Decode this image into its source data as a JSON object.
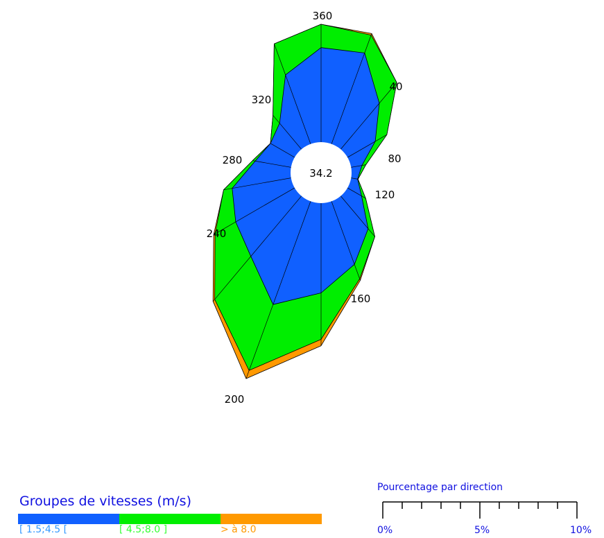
{
  "chart_data": {
    "type": "polar-area",
    "center_value": "34.2",
    "direction_labels": [
      "360",
      "40",
      "80",
      "120",
      "160",
      "200",
      "240",
      "280",
      "320"
    ],
    "directions": [
      0,
      20,
      40,
      60,
      80,
      100,
      120,
      140,
      160,
      180,
      200,
      220,
      240,
      260,
      280,
      300,
      320,
      340
    ],
    "series": [
      {
        "name": "[ 1.5;4.5 [",
        "color": "#1060ff",
        "values": [
          3.74,
          3.81,
          2.71,
          1.87,
          1.24,
          1.11,
          1.4,
          2.19,
          2.92,
          3.6,
          4.2,
          3.27,
          2.95,
          2.7,
          2.0,
          1.75,
          1.93,
          3.11
        ]
      },
      {
        "name": "[ 4.5;8.0 ]",
        "color": "#00ee00",
        "values": [
          4.44,
          4.38,
          3.52,
          2.27,
          1.36,
          1.12,
          1.54,
          2.5,
          3.38,
          4.99,
          6.3,
          4.95,
          3.66,
          2.96,
          2.08,
          1.75,
          2.24,
          4.1
        ]
      },
      {
        "name": "> à 8.0",
        "color": "#ff9900",
        "values": [
          4.44,
          4.43,
          3.52,
          2.27,
          1.36,
          1.12,
          1.54,
          2.5,
          3.43,
          5.18,
          6.56,
          5.03,
          3.71,
          2.96,
          2.08,
          1.75,
          2.24,
          4.1
        ]
      }
    ]
  },
  "legend": {
    "title": "Groupes de vitesses (m/s)",
    "items": [
      {
        "label": "[ 1.5;4.5 [",
        "color": "#1060ff",
        "text_color": "#3399ff"
      },
      {
        "label": "[ 4.5;8.0 ]",
        "color": "#00ee00",
        "text_color": "#33ff33"
      },
      {
        "label": "> à 8.0",
        "color": "#ff9900",
        "text_color": "#ff9900"
      }
    ]
  },
  "scale": {
    "title": "Pourcentage par direction",
    "labels": [
      "0%",
      "5%",
      "10%"
    ]
  }
}
